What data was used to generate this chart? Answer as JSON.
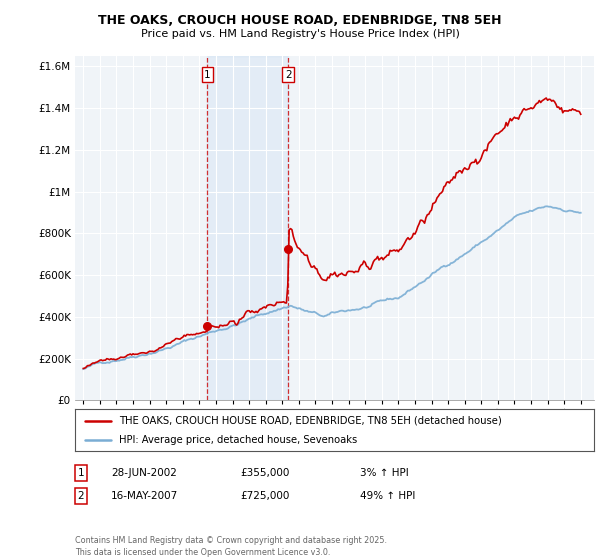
{
  "title": "THE OAKS, CROUCH HOUSE ROAD, EDENBRIDGE, TN8 5EH",
  "subtitle": "Price paid vs. HM Land Registry's House Price Index (HPI)",
  "legend_line1": "THE OAKS, CROUCH HOUSE ROAD, EDENBRIDGE, TN8 5EH (detached house)",
  "legend_line2": "HPI: Average price, detached house, Sevenoaks",
  "transaction1_label": "1",
  "transaction1_date": "28-JUN-2002",
  "transaction1_price": "£355,000",
  "transaction1_hpi": "3% ↑ HPI",
  "transaction2_label": "2",
  "transaction2_date": "16-MAY-2007",
  "transaction2_price": "£725,000",
  "transaction2_hpi": "49% ↑ HPI",
  "footnote": "Contains HM Land Registry data © Crown copyright and database right 2025.\nThis data is licensed under the Open Government Licence v3.0.",
  "red_color": "#cc0000",
  "blue_color": "#7aadd4",
  "background_color": "#ffffff",
  "plot_bg_color": "#f0f4f8",
  "grid_color": "#ffffff",
  "marker1_x": 2002.49,
  "marker1_y": 355000,
  "marker2_x": 2007.37,
  "marker2_y": 725000,
  "vline1_x": 2002.49,
  "vline2_x": 2007.37,
  "ylim_min": 0,
  "ylim_max": 1650000,
  "xlim_min": 1994.5,
  "xlim_max": 2025.8,
  "yticks": [
    0,
    200000,
    400000,
    600000,
    800000,
    1000000,
    1200000,
    1400000,
    1600000
  ],
  "ytick_labels": [
    "£0",
    "£200K",
    "£400K",
    "£600K",
    "£800K",
    "£1M",
    "£1.2M",
    "£1.4M",
    "£1.6M"
  ],
  "xticks": [
    1995,
    1996,
    1997,
    1998,
    1999,
    2000,
    2001,
    2002,
    2003,
    2004,
    2005,
    2006,
    2007,
    2008,
    2009,
    2010,
    2011,
    2012,
    2013,
    2014,
    2015,
    2016,
    2017,
    2018,
    2019,
    2020,
    2021,
    2022,
    2023,
    2024,
    2025
  ]
}
